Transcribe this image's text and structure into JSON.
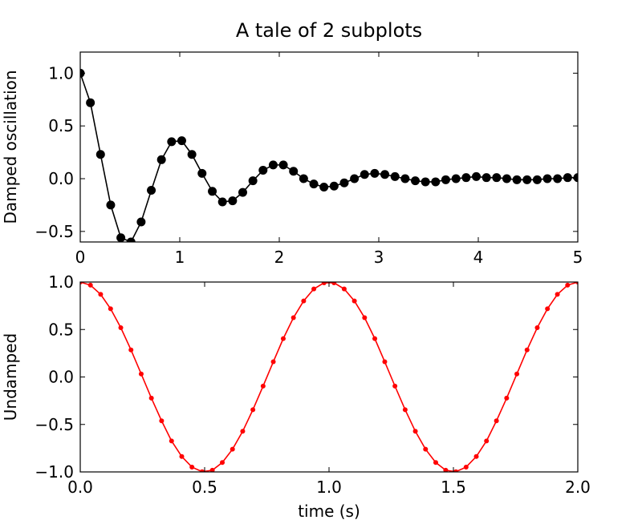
{
  "chart_data": [
    {
      "type": "line",
      "title": "A tale of 2 subplots",
      "ylabel": "Damped oscillation",
      "xlim": [
        0,
        5
      ],
      "ylim": [
        -0.6,
        1.2
      ],
      "xticks": [
        0,
        1,
        2,
        3,
        4,
        5
      ],
      "yticks": [
        {
          "value": -0.5,
          "label": "−0.5"
        },
        {
          "value": 0,
          "label": "0.0"
        },
        {
          "value": 0.5,
          "label": "0.5"
        },
        {
          "value": 1,
          "label": "1.0"
        }
      ],
      "x": [
        0,
        0.102,
        0.204,
        0.306,
        0.408,
        0.51,
        0.612,
        0.714,
        0.816,
        0.918,
        1.02,
        1.122,
        1.224,
        1.327,
        1.429,
        1.531,
        1.633,
        1.735,
        1.837,
        1.939,
        2.041,
        2.143,
        2.245,
        2.347,
        2.449,
        2.551,
        2.653,
        2.755,
        2.857,
        2.959,
        3.061,
        3.163,
        3.265,
        3.367,
        3.469,
        3.571,
        3.673,
        3.776,
        3.878,
        3.98,
        4.082,
        4.184,
        4.286,
        4.388,
        4.49,
        4.592,
        4.694,
        4.796,
        4.898,
        5
      ],
      "series": [
        {
          "color": "#000000",
          "marker": "circle",
          "values": [
            1,
            0.72,
            0.23,
            -0.25,
            -0.56,
            -0.6,
            -0.41,
            -0.11,
            0.18,
            0.35,
            0.36,
            0.23,
            0.05,
            -0.12,
            -0.22,
            -0.21,
            -0.13,
            -0.02,
            0.08,
            0.13,
            0.13,
            0.07,
            0,
            -0.05,
            -0.08,
            -0.07,
            -0.04,
            0,
            0.04,
            0.05,
            0.04,
            0.02,
            0,
            -0.02,
            -0.03,
            -0.03,
            -0.01,
            0,
            0.01,
            0.02,
            0.01,
            0.01,
            0,
            -0.01,
            -0.01,
            -0.01,
            0,
            0,
            0.01,
            0.01
          ]
        }
      ]
    },
    {
      "type": "line",
      "ylabel": "Undamped",
      "xlabel": "time (s)",
      "xlim": [
        0,
        2
      ],
      "ylim": [
        -1,
        1
      ],
      "xticks": [
        {
          "value": 0,
          "label": "0.0"
        },
        {
          "value": 0.5,
          "label": "0.5"
        },
        {
          "value": 1,
          "label": "1.0"
        },
        {
          "value": 1.5,
          "label": "1.5"
        },
        {
          "value": 2,
          "label": "2.0"
        }
      ],
      "yticks": [
        {
          "value": -1,
          "label": "−1.0"
        },
        {
          "value": -0.5,
          "label": "−0.5"
        },
        {
          "value": 0,
          "label": "0.0"
        },
        {
          "value": 0.5,
          "label": "0.5"
        },
        {
          "value": 1,
          "label": "1.0"
        }
      ],
      "x": [
        0,
        0.041,
        0.082,
        0.122,
        0.163,
        0.204,
        0.245,
        0.286,
        0.327,
        0.367,
        0.408,
        0.449,
        0.49,
        0.531,
        0.571,
        0.612,
        0.653,
        0.694,
        0.735,
        0.776,
        0.816,
        0.857,
        0.898,
        0.939,
        0.98,
        1.02,
        1.061,
        1.102,
        1.143,
        1.184,
        1.224,
        1.265,
        1.306,
        1.347,
        1.388,
        1.429,
        1.469,
        1.51,
        1.551,
        1.592,
        1.633,
        1.673,
        1.714,
        1.755,
        1.796,
        1.837,
        1.878,
        1.918,
        1.959,
        2
      ],
      "series": [
        {
          "color": "#ff0000",
          "marker": "dot",
          "values": [
            1,
            0.967,
            0.87,
            0.718,
            0.519,
            0.285,
            0.032,
            -0.223,
            -0.462,
            -0.674,
            -0.838,
            -0.949,
            -0.998,
            -0.982,
            -0.901,
            -0.761,
            -0.572,
            -0.345,
            -0.096,
            0.16,
            0.404,
            0.624,
            0.801,
            0.927,
            0.992,
            0.992,
            0.927,
            0.801,
            0.624,
            0.404,
            0.16,
            -0.096,
            -0.345,
            -0.572,
            -0.761,
            -0.901,
            -0.982,
            -0.998,
            -0.949,
            -0.838,
            -0.674,
            -0.462,
            -0.223,
            0.032,
            0.285,
            0.519,
            0.718,
            0.87,
            0.967,
            1
          ]
        }
      ]
    }
  ]
}
